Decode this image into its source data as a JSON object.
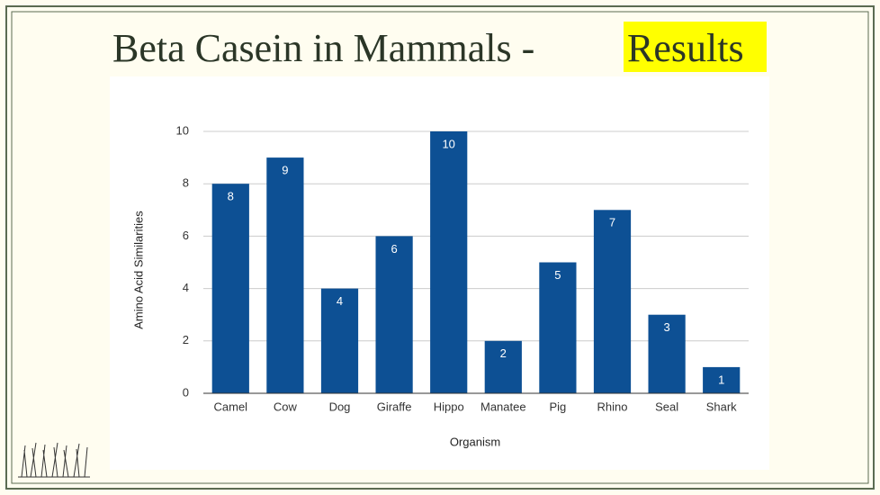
{
  "slide": {
    "title": "Beta Casein in Mammals -",
    "highlight": "Results"
  },
  "chart_data": {
    "type": "bar",
    "x_label": "Organism",
    "y_label": "Amino Acid Similarities",
    "categories": [
      "Camel",
      "Cow",
      "Dog",
      "Giraffe",
      "Hippo",
      "Manatee",
      "Pig",
      "Rhino",
      "Seal",
      "Shark"
    ],
    "values": [
      8,
      9,
      4,
      6,
      10,
      2,
      5,
      7,
      3,
      1
    ],
    "color": "#0d5094",
    "ylim": [
      0,
      10
    ],
    "yticks": [
      0,
      2,
      4,
      6,
      8,
      10
    ],
    "grid": true
  }
}
